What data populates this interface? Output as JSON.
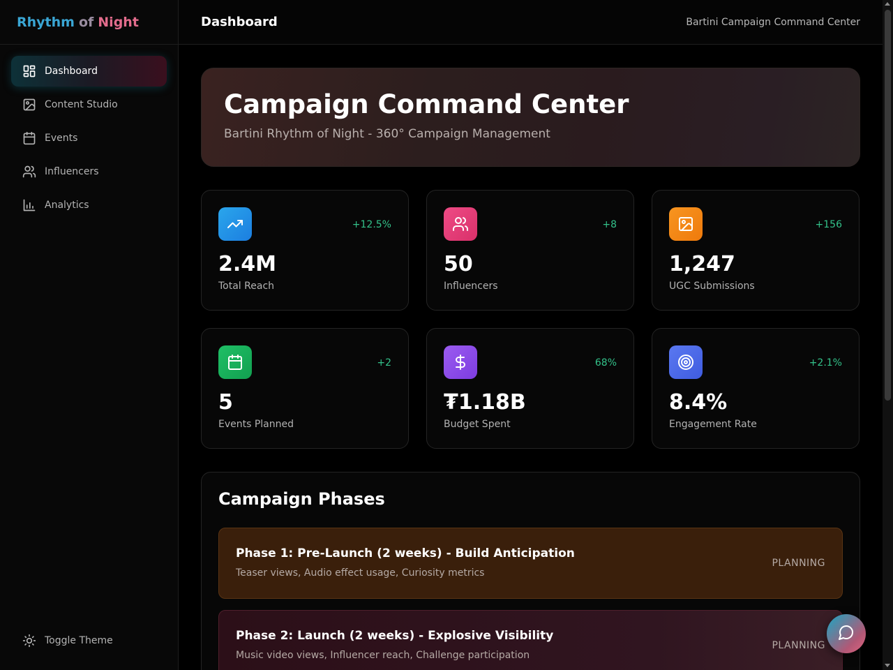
{
  "brand": {
    "part1": "Rhythm",
    "part2": "of",
    "part3": "Night"
  },
  "sidebar": {
    "items": [
      {
        "label": "Dashboard",
        "icon": "dashboard-icon",
        "active": true
      },
      {
        "label": "Content Studio",
        "icon": "image-icon"
      },
      {
        "label": "Events",
        "icon": "calendar-icon"
      },
      {
        "label": "Influencers",
        "icon": "users-icon"
      },
      {
        "label": "Analytics",
        "icon": "bar-chart-icon"
      }
    ],
    "toggle_label": "Toggle Theme"
  },
  "header": {
    "title": "Dashboard",
    "subtitle": "Bartini Campaign Command Center"
  },
  "hero": {
    "title": "Campaign Command Center",
    "subtitle": "Bartini Rhythm of Night - 360° Campaign Management"
  },
  "stats": [
    {
      "value": "2.4M",
      "label": "Total Reach",
      "delta": "+12.5%",
      "icon": "trending-up-icon",
      "color": "#1f8ee6"
    },
    {
      "value": "50",
      "label": "Influencers",
      "delta": "+8",
      "icon": "users-icon",
      "color": "#e23b74"
    },
    {
      "value": "1,247",
      "label": "UGC Submissions",
      "delta": "+156",
      "icon": "image-icon",
      "color": "#f07d10"
    },
    {
      "value": "5",
      "label": "Events Planned",
      "delta": "+2",
      "icon": "calendar-icon",
      "color": "#16a757"
    },
    {
      "value": "₮1.18B",
      "label": "Budget Spent",
      "delta": "68%",
      "icon": "dollar-icon",
      "color": "#8c4ae6"
    },
    {
      "value": "8.4%",
      "label": "Engagement Rate",
      "delta": "+2.1%",
      "icon": "target-icon",
      "color": "#4a6ae6"
    }
  ],
  "phases": {
    "title": "Campaign Phases",
    "items": [
      {
        "title": "Phase 1: Pre-Launch (2 weeks) - Build Anticipation",
        "metrics": "Teaser views, Audio effect usage, Curiosity metrics",
        "status": "PLANNING"
      },
      {
        "title": "Phase 2: Launch (2 weeks) - Explosive Visibility",
        "metrics": "Music video views, Influencer reach, Challenge participation",
        "status": "PLANNING"
      }
    ]
  },
  "fab": {
    "icon": "chat-icon"
  }
}
